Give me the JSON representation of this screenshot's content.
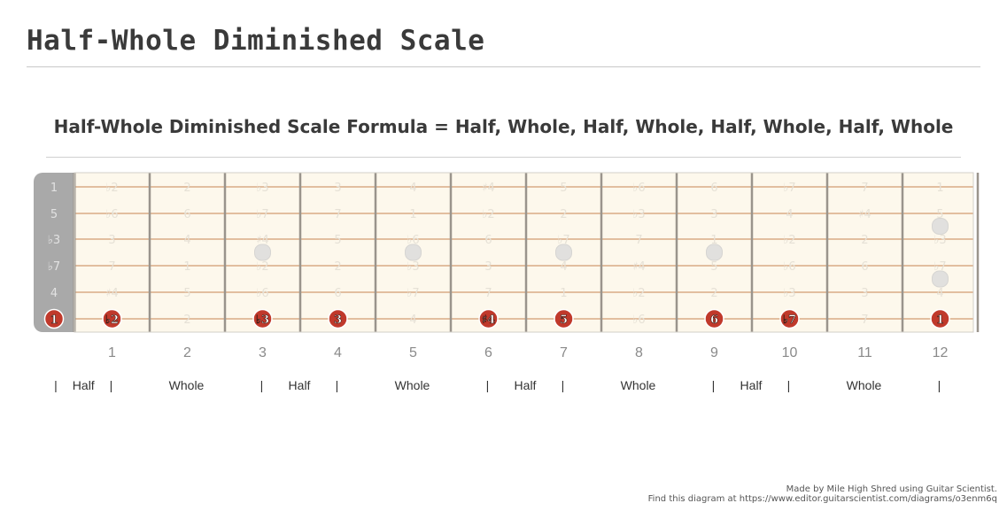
{
  "page": {
    "title": "Half-Whole Diminished Scale",
    "formula_title": "Half-Whole Diminished Scale Formula = Half, Whole, Half, Whole, Half, Whole, Half, Whole"
  },
  "fretboard": {
    "open_string_labels": [
      "1",
      "5",
      "♭3",
      "♭7",
      "4",
      "1"
    ],
    "string_rows": [
      [
        "♭2",
        "2",
        "♭3",
        "3",
        "4",
        "♯4",
        "5",
        "♭6",
        "6",
        "♭7",
        "7",
        "1"
      ],
      [
        "♭6",
        "6",
        "♭7",
        "7",
        "1",
        "♭2",
        "2",
        "♭3",
        "3",
        "4",
        "♯4",
        "5"
      ],
      [
        "3",
        "4",
        "♯4",
        "5",
        "♭6",
        "6",
        "♭7",
        "7",
        "1",
        "♭2",
        "2",
        "♭3"
      ],
      [
        "7",
        "1",
        "♭2",
        "2",
        "♭3",
        "3",
        "4",
        "♯4",
        "5",
        "♭6",
        "6",
        "♭7"
      ],
      [
        "♯4",
        "5",
        "♭6",
        "6",
        "♭7",
        "7",
        "1",
        "♭2",
        "2",
        "♭3",
        "3",
        "4"
      ],
      [
        "♭2",
        "2",
        "♭3",
        "3",
        "4",
        "♯4",
        "5",
        "♭6",
        "6",
        "♭7",
        "7",
        "1"
      ]
    ],
    "fret_numbers": [
      "1",
      "2",
      "3",
      "4",
      "5",
      "6",
      "7",
      "8",
      "9",
      "10",
      "11",
      "12"
    ],
    "inlay_frets_single": [
      3,
      5,
      7,
      9
    ],
    "inlay_fret_double": 12,
    "highlighted_notes": [
      {
        "fret": 0,
        "label": "1"
      },
      {
        "fret": 1,
        "label": "♭2"
      },
      {
        "fret": 3,
        "label": "♭3"
      },
      {
        "fret": 4,
        "label": "3"
      },
      {
        "fret": 6,
        "label": "♯4"
      },
      {
        "fret": 7,
        "label": "5"
      },
      {
        "fret": 9,
        "label": "6"
      },
      {
        "fret": 10,
        "label": "♭7"
      },
      {
        "fret": 12,
        "label": "1"
      }
    ],
    "intervals": [
      {
        "label": "Half",
        "from": 0,
        "to": 1
      },
      {
        "label": "Whole",
        "from": 1,
        "to": 3
      },
      {
        "label": "Half",
        "from": 3,
        "to": 4
      },
      {
        "label": "Whole",
        "from": 4,
        "to": 6
      },
      {
        "label": "Half",
        "from": 6,
        "to": 7
      },
      {
        "label": "Whole",
        "from": 7,
        "to": 9
      },
      {
        "label": "Half",
        "from": 9,
        "to": 10
      },
      {
        "label": "Whole",
        "from": 10,
        "to": 12
      }
    ],
    "colors": {
      "board": "#fdf8ec",
      "nut": "#a9a9a9",
      "string": "#d9ab85",
      "fret": "#9a948c",
      "inlay": "#e1e0de",
      "faint_label": "#e6e1d6",
      "note_fill": "#c0392b"
    }
  },
  "footer": {
    "credit": "Made by Mile High Shred using Guitar Scientist.",
    "link": "Find this diagram at https://www.editor.guitarscientist.com/diagrams/o3enm6q"
  }
}
